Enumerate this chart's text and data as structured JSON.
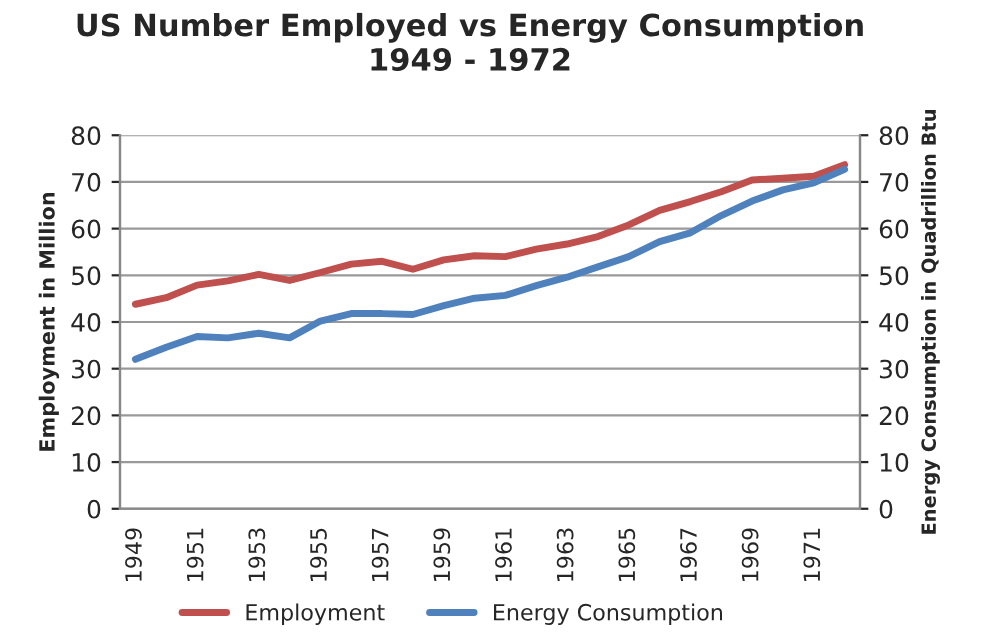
{
  "chart_data": {
    "type": "line",
    "title": "US Number Employed vs Energy Consumption\n1949 - 1972",
    "ylabel": "Employment in Million",
    "y2label": "Energy Consumption in Quadrillion Btu",
    "categories": [
      "1949",
      null,
      "1951",
      null,
      "1953",
      null,
      "1955",
      null,
      "1957",
      null,
      "1959",
      null,
      "1961",
      null,
      "1963",
      null,
      "1965",
      null,
      "1967",
      null,
      "1969",
      null,
      "1971",
      null
    ],
    "series": [
      {
        "name": "Employment",
        "color": "#c0504d",
        "values": [
          43.8,
          45.2,
          47.9,
          48.8,
          50.2,
          48.9,
          50.6,
          52.4,
          53.0,
          51.3,
          53.3,
          54.2,
          54.0,
          55.6,
          56.7,
          58.3,
          60.8,
          63.9,
          65.8,
          67.9,
          70.4,
          70.8,
          71.2,
          73.7
        ]
      },
      {
        "name": "Energy Consumption",
        "color": "#4f81bd",
        "axis": "y2",
        "values": [
          32.0,
          34.6,
          36.9,
          36.6,
          37.6,
          36.6,
          40.2,
          41.8,
          41.8,
          41.6,
          43.5,
          45.1,
          45.7,
          47.8,
          49.6,
          51.8,
          54.0,
          57.2,
          59.1,
          62.8,
          65.9,
          68.3,
          69.8,
          72.7
        ]
      }
    ],
    "ylim": [
      0,
      80
    ],
    "yticks": [
      0,
      10,
      20,
      30,
      40,
      50,
      60,
      70,
      80
    ],
    "y2lim": [
      0,
      80
    ],
    "y2ticks": [
      0,
      10,
      20,
      30,
      40,
      50,
      60,
      70,
      80
    ],
    "grid": "y",
    "legend": "bottom",
    "marker": "none",
    "line_style": "solid"
  }
}
